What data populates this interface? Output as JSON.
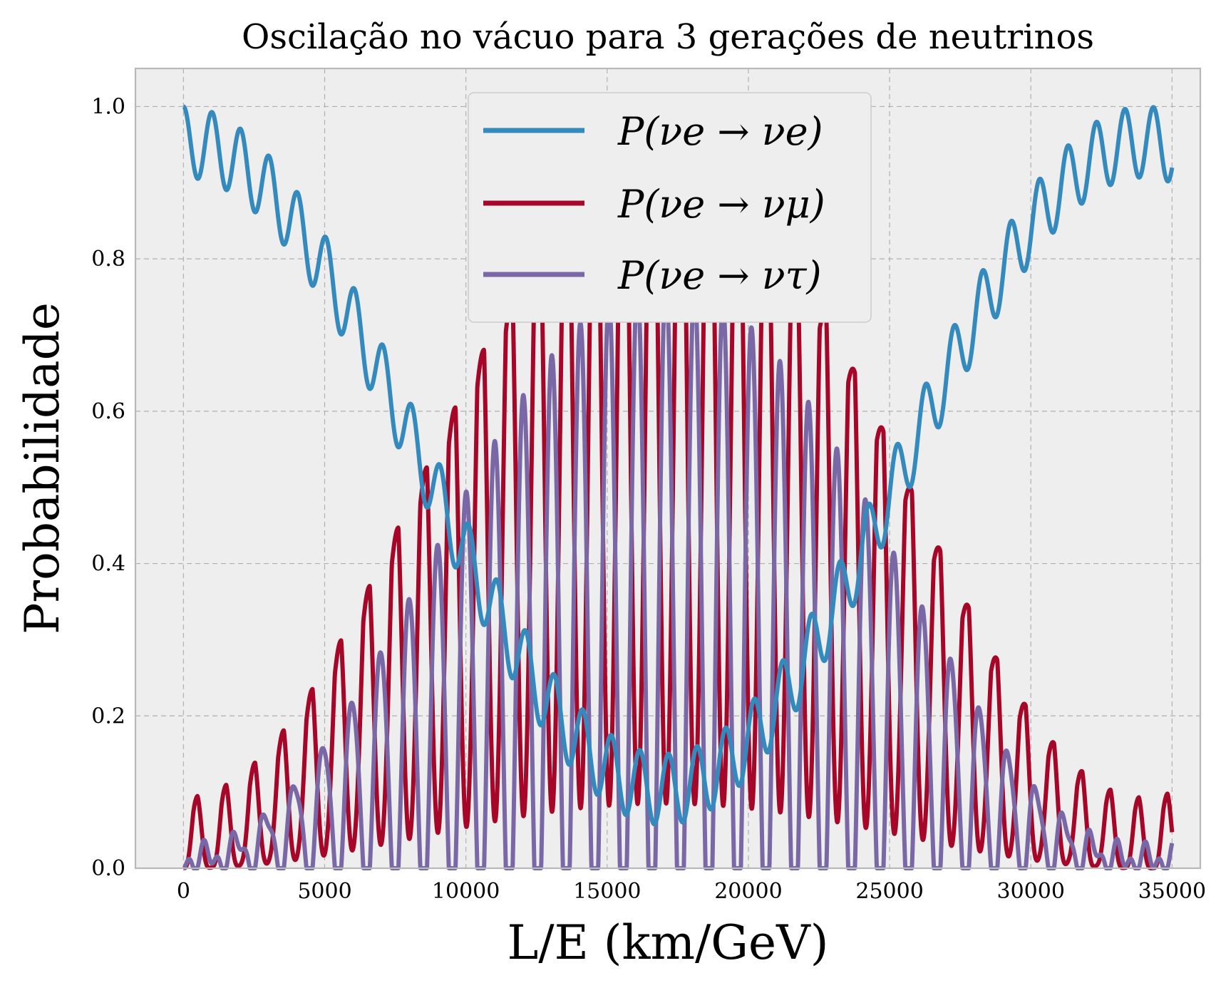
{
  "chart_data": {
    "type": "line",
    "title": "Oscilação no vácuo para 3 gerações de neutrinos",
    "xlabel": "L/E (km/GeV)",
    "ylabel": "Probabilidade",
    "xlim": [
      -1700,
      36000
    ],
    "ylim": [
      0.0,
      1.05
    ],
    "xticks": [
      "0",
      "5000",
      "10000",
      "15000",
      "20000",
      "25000",
      "30000",
      "35000"
    ],
    "yticks": [
      "0.0",
      "0.2",
      "0.4",
      "0.6",
      "0.8",
      "1.0"
    ],
    "grid": true,
    "legend_position": "upper center",
    "background": "#eeeeee",
    "model": {
      "slow_period_km_per_GeV": 34000,
      "fast_period_km_per_GeV": 1010,
      "slow_amplitude": 0.85,
      "fast_amplitude": 0.093,
      "tau_fraction": 0.4
    },
    "series": [
      {
        "name": "P(νe → νe)",
        "color": "#348abd",
        "x": [
          0,
          5000,
          10000,
          15000,
          17000,
          20000,
          25000,
          30000,
          35000
        ],
        "values": [
          1.0,
          0.81,
          0.41,
          0.17,
          0.15,
          0.23,
          0.55,
          0.88,
          0.9
        ]
      },
      {
        "name": "P(νe → νμ)",
        "color": "#a60628",
        "x": [
          0,
          5000,
          10000,
          15000,
          17000,
          20000,
          25000,
          30000,
          35000
        ],
        "values": [
          0.0,
          0.22,
          0.5,
          0.67,
          0.68,
          0.6,
          0.33,
          0.09,
          0.06
        ]
      },
      {
        "name": "P(νe → ντ)",
        "color": "#7a68a6",
        "x": [
          0,
          5000,
          10000,
          15000,
          17000,
          20000,
          25000,
          30000,
          35000
        ],
        "values": [
          0.0,
          0.12,
          0.29,
          0.42,
          0.44,
          0.42,
          0.25,
          0.09,
          0.04
        ]
      }
    ]
  }
}
